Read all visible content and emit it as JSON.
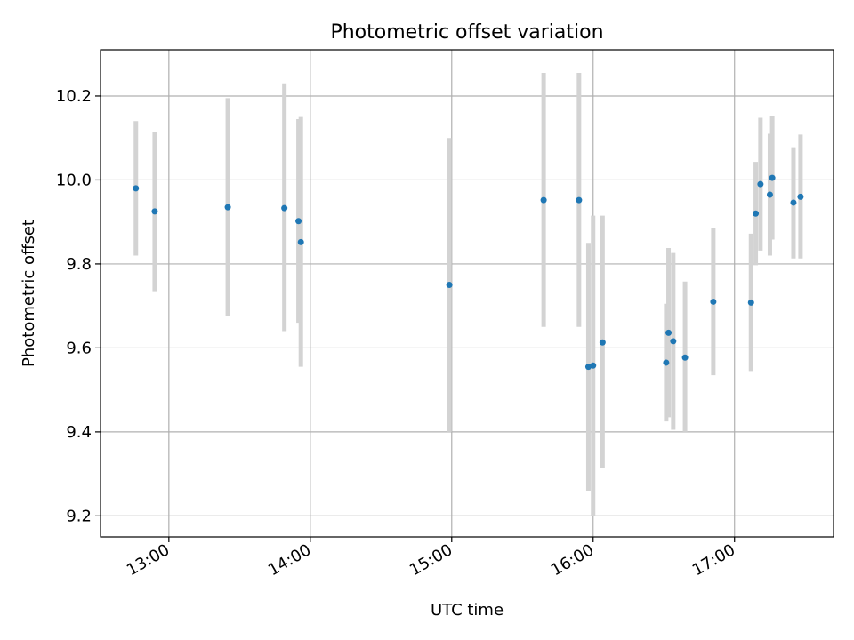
{
  "chart_data": {
    "type": "scatter",
    "title": "Photometric offset variation",
    "xlabel": "UTC time",
    "ylabel": "Photometric offset",
    "x_unit": "time (HH:MM)",
    "xlim": [
      "12:31",
      "17:42"
    ],
    "ylim": [
      9.15,
      10.31
    ],
    "x_ticks": [
      "13:00",
      "14:00",
      "15:00",
      "16:00",
      "17:00"
    ],
    "y_ticks": [
      9.2,
      9.4,
      9.6,
      9.8,
      10.0,
      10.2
    ],
    "grid": true,
    "point_color": "#1f77b4",
    "errorbar_color": "#d3d3d3",
    "points": [
      {
        "x": "12:46",
        "y": 9.98,
        "ylo": 9.82,
        "yhi": 10.14
      },
      {
        "x": "12:54",
        "y": 9.925,
        "ylo": 9.735,
        "yhi": 10.115
      },
      {
        "x": "13:25",
        "y": 9.935,
        "ylo": 9.675,
        "yhi": 10.195
      },
      {
        "x": "13:49",
        "y": 9.933,
        "ylo": 9.64,
        "yhi": 10.23
      },
      {
        "x": "13:55",
        "y": 9.902,
        "ylo": 9.66,
        "yhi": 10.145
      },
      {
        "x": "13:56",
        "y": 9.852,
        "ylo": 9.555,
        "yhi": 10.15
      },
      {
        "x": "14:59",
        "y": 9.75,
        "ylo": 9.4,
        "yhi": 10.1
      },
      {
        "x": "15:39",
        "y": 9.952,
        "ylo": 9.65,
        "yhi": 10.255
      },
      {
        "x": "15:54",
        "y": 9.952,
        "ylo": 9.65,
        "yhi": 10.255
      },
      {
        "x": "15:58",
        "y": 9.555,
        "ylo": 9.26,
        "yhi": 9.85
      },
      {
        "x": "16:00",
        "y": 9.558,
        "ylo": 9.2,
        "yhi": 9.915
      },
      {
        "x": "16:04",
        "y": 9.613,
        "ylo": 9.315,
        "yhi": 9.915
      },
      {
        "x": "16:31",
        "y": 9.565,
        "ylo": 9.425,
        "yhi": 9.705
      },
      {
        "x": "16:32",
        "y": 9.636,
        "ylo": 9.435,
        "yhi": 9.838
      },
      {
        "x": "16:34",
        "y": 9.616,
        "ylo": 9.405,
        "yhi": 9.826
      },
      {
        "x": "16:39",
        "y": 9.577,
        "ylo": 9.4,
        "yhi": 9.758
      },
      {
        "x": "16:51",
        "y": 9.71,
        "ylo": 9.535,
        "yhi": 9.885
      },
      {
        "x": "17:07",
        "y": 9.708,
        "ylo": 9.545,
        "yhi": 9.872
      },
      {
        "x": "17:09",
        "y": 9.92,
        "ylo": 9.797,
        "yhi": 10.043
      },
      {
        "x": "17:11",
        "y": 9.99,
        "ylo": 9.832,
        "yhi": 10.148
      },
      {
        "x": "17:15",
        "y": 9.965,
        "ylo": 9.82,
        "yhi": 10.11
      },
      {
        "x": "17:16",
        "y": 10.005,
        "ylo": 9.858,
        "yhi": 10.153
      },
      {
        "x": "17:25",
        "y": 9.946,
        "ylo": 9.813,
        "yhi": 10.078
      },
      {
        "x": "17:28",
        "y": 9.96,
        "ylo": 9.813,
        "yhi": 10.108
      }
    ]
  }
}
